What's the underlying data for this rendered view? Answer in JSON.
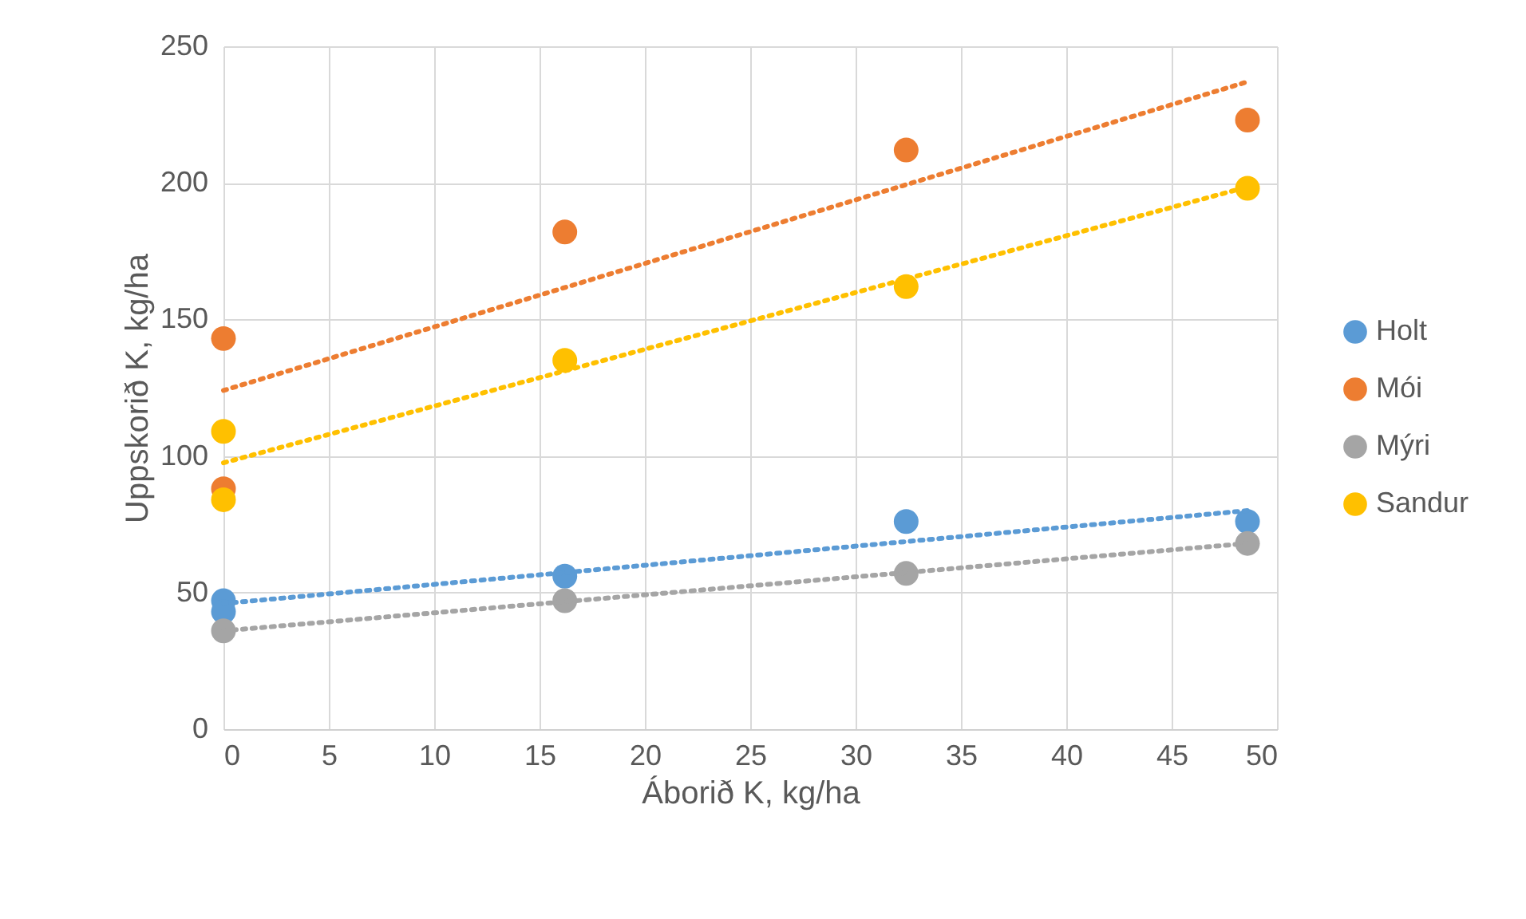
{
  "chart_data": {
    "type": "scatter",
    "xlabel": "Áborið K, kg/ha",
    "ylabel": "Uppskorið K, kg/ha",
    "xlim": [
      0,
      50
    ],
    "xticks": [
      0,
      5,
      10,
      15,
      20,
      25,
      30,
      35,
      40,
      45,
      50
    ],
    "ylim": [
      0,
      250
    ],
    "yticks": [
      0,
      50,
      100,
      150,
      200,
      250
    ],
    "grid": true,
    "legend": "right",
    "marker": "circle",
    "series": [
      {
        "name": "Holt",
        "color": "#5b9bd5",
        "x": [
          0,
          0,
          16.2,
          32.4,
          48.6
        ],
        "values": [
          47,
          43,
          56,
          76,
          76
        ]
      },
      {
        "name": "Mói",
        "color": "#ed7d31",
        "x": [
          0,
          0,
          16.2,
          32.4,
          48.6
        ],
        "values": [
          143,
          88,
          182,
          212,
          223
        ]
      },
      {
        "name": "Mýri",
        "color": "#a5a5a5",
        "x": [
          0,
          16.2,
          32.4,
          48.6
        ],
        "values": [
          36,
          47,
          57,
          68
        ]
      },
      {
        "name": "Sandur",
        "color": "#ffc000",
        "x": [
          0,
          0,
          16.2,
          32.4,
          48.6
        ],
        "values": [
          109,
          84,
          135,
          162,
          198
        ]
      },
      {
        "type": "line",
        "line_style": "dotted",
        "marker": "none",
        "color": "#5b9bd5",
        "x": [
          0,
          48.6
        ],
        "values": [
          46,
          80
        ]
      },
      {
        "type": "line",
        "line_style": "dotted",
        "marker": "none",
        "color": "#ed7d31",
        "x": [
          0,
          48.6
        ],
        "values": [
          124,
          237
        ]
      },
      {
        "type": "line",
        "line_style": "dotted",
        "marker": "none",
        "color": "#a5a5a5",
        "x": [
          0,
          48.6
        ],
        "values": [
          36,
          68
        ]
      },
      {
        "type": "line",
        "line_style": "dotted",
        "marker": "none",
        "color": "#ffc000",
        "x": [
          0,
          48.6
        ],
        "values": [
          97.5,
          198.5
        ]
      }
    ]
  }
}
